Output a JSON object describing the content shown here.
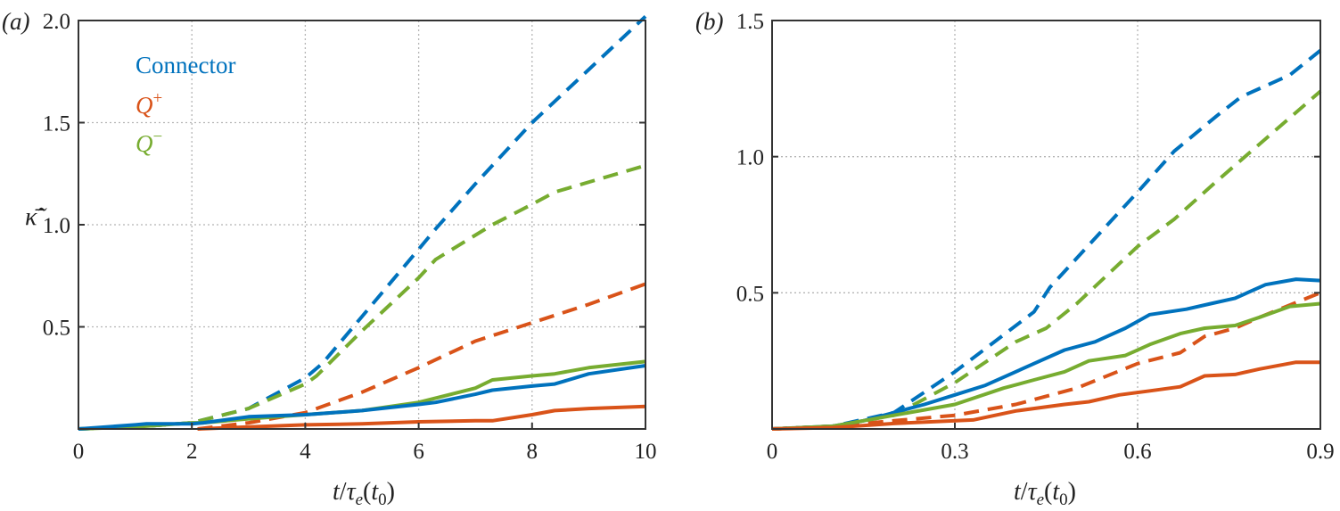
{
  "colors": {
    "connector": "#0072BD",
    "qplus": "#D95319",
    "qminus": "#77AC30",
    "axis": "#333333",
    "grid": "#b5b5b5"
  },
  "chart_data": [
    {
      "type": "line",
      "panel_label": "(a)",
      "ylabel": "κ̃̄",
      "xlabel_parts": [
        "t",
        "/",
        "τ",
        "e",
        "(",
        "t",
        "0",
        ")"
      ],
      "xlim": [
        0,
        10
      ],
      "ylim": [
        0,
        2.0
      ],
      "xticks": [
        0,
        2,
        4,
        6,
        8,
        10
      ],
      "xtick_labels": [
        "0",
        "2",
        "4",
        "6",
        "8",
        "10"
      ],
      "yticks": [
        0.5,
        1.0,
        1.5,
        2.0
      ],
      "ytick_labels": [
        "0.5",
        "1.0",
        "1.5",
        "2.0"
      ],
      "grid": true,
      "legend": [
        {
          "label": "Connector",
          "sup": "",
          "key": "connector"
        },
        {
          "label": "Q",
          "sup": "+",
          "key": "qplus"
        },
        {
          "label": "Q",
          "sup": "−",
          "key": "qminus"
        }
      ],
      "legend_position": "top-left",
      "series": [
        {
          "name": "Connector dashed",
          "key": "connector",
          "style": "dashed",
          "x": [
            0,
            1,
            2,
            3,
            4,
            4.3,
            5,
            6,
            6.3,
            7,
            8,
            9,
            10
          ],
          "y": [
            0,
            0.01,
            0.03,
            0.1,
            0.25,
            0.32,
            0.55,
            0.88,
            0.98,
            1.2,
            1.5,
            1.76,
            2.02
          ]
        },
        {
          "name": "Q- dashed",
          "key": "qminus",
          "style": "dashed",
          "x": [
            0,
            1,
            2,
            3,
            4,
            4.2,
            5,
            6,
            6.3,
            7.3,
            8,
            8.4,
            10
          ],
          "y": [
            0,
            0.01,
            0.03,
            0.1,
            0.22,
            0.26,
            0.48,
            0.74,
            0.83,
            1.0,
            1.1,
            1.16,
            1.29
          ]
        },
        {
          "name": "Q+ dashed",
          "key": "qplus",
          "style": "dashed",
          "x": [
            2.1,
            3,
            4,
            5,
            6,
            7,
            8,
            9,
            10
          ],
          "y": [
            0,
            0.03,
            0.08,
            0.18,
            0.3,
            0.43,
            0.52,
            0.61,
            0.71
          ]
        },
        {
          "name": "Q- solid",
          "key": "qminus",
          "style": "solid",
          "x": [
            0,
            1,
            2,
            2.2,
            3,
            4,
            5,
            6,
            7,
            7.3,
            8,
            8.4,
            9,
            10
          ],
          "y": [
            0,
            0.01,
            0.03,
            0.03,
            0.05,
            0.07,
            0.09,
            0.13,
            0.2,
            0.24,
            0.26,
            0.27,
            0.3,
            0.33
          ]
        },
        {
          "name": "Connector solid",
          "key": "connector",
          "style": "solid",
          "x": [
            0,
            1,
            1.2,
            2,
            2.2,
            3,
            4,
            5,
            6,
            6.3,
            7,
            7.3,
            8,
            8.4,
            9,
            10
          ],
          "y": [
            0,
            0.02,
            0.025,
            0.025,
            0.03,
            0.06,
            0.07,
            0.09,
            0.12,
            0.13,
            0.17,
            0.19,
            0.21,
            0.22,
            0.27,
            0.31
          ]
        },
        {
          "name": "Q+ solid",
          "key": "qplus",
          "style": "solid",
          "x": [
            2.1,
            3,
            4,
            5,
            6,
            7,
            7.3,
            8,
            8.4,
            9,
            10
          ],
          "y": [
            0,
            0.01,
            0.02,
            0.025,
            0.035,
            0.04,
            0.04,
            0.07,
            0.09,
            0.1,
            0.11
          ]
        }
      ]
    },
    {
      "type": "line",
      "panel_label": "(b)",
      "xlabel_parts": [
        "t",
        "/",
        "τ",
        "e",
        "(",
        "t",
        "0",
        ")"
      ],
      "xlim": [
        0,
        0.9
      ],
      "ylim": [
        0,
        1.5
      ],
      "xticks": [
        0,
        0.3,
        0.6,
        0.9
      ],
      "xtick_labels": [
        "0",
        "0.3",
        "0.6",
        "0.9"
      ],
      "yticks": [
        0.5,
        1.0,
        1.5
      ],
      "ytick_labels": [
        "0.5",
        "1.0",
        "1.5"
      ],
      "grid": true,
      "series": [
        {
          "name": "Connector dashed",
          "key": "connector",
          "style": "dashed",
          "x": [
            0,
            0.1,
            0.2,
            0.3,
            0.43,
            0.456,
            0.6,
            0.66,
            0.73,
            0.77,
            0.85,
            0.9
          ],
          "y": [
            0,
            0.01,
            0.06,
            0.21,
            0.43,
            0.52,
            0.87,
            1.02,
            1.15,
            1.22,
            1.3,
            1.39
          ]
        },
        {
          "name": "Q- dashed",
          "key": "qminus",
          "style": "dashed",
          "x": [
            0,
            0.1,
            0.2,
            0.3,
            0.4,
            0.45,
            0.5,
            0.6,
            0.66,
            0.73,
            0.9
          ],
          "y": [
            0,
            0.01,
            0.05,
            0.17,
            0.32,
            0.37,
            0.46,
            0.67,
            0.77,
            0.91,
            1.24
          ]
        },
        {
          "name": "Q+ dashed",
          "key": "qplus",
          "style": "dashed",
          "x": [
            0,
            0.1,
            0.2,
            0.3,
            0.4,
            0.5,
            0.6,
            0.67,
            0.71,
            0.76,
            0.8,
            0.9
          ],
          "y": [
            0,
            0.01,
            0.03,
            0.05,
            0.09,
            0.15,
            0.24,
            0.28,
            0.34,
            0.37,
            0.41,
            0.5
          ]
        },
        {
          "name": "Connector solid",
          "key": "connector",
          "style": "solid",
          "x": [
            0,
            0.1,
            0.15,
            0.2,
            0.25,
            0.3,
            0.35,
            0.43,
            0.48,
            0.53,
            0.58,
            0.62,
            0.68,
            0.72,
            0.76,
            0.81,
            0.86,
            0.9
          ],
          "y": [
            0,
            0.01,
            0.03,
            0.06,
            0.09,
            0.125,
            0.16,
            0.24,
            0.29,
            0.32,
            0.37,
            0.42,
            0.44,
            0.46,
            0.48,
            0.53,
            0.55,
            0.545
          ]
        },
        {
          "name": "Q- solid",
          "key": "qminus",
          "style": "solid",
          "x": [
            0,
            0.1,
            0.15,
            0.2,
            0.25,
            0.3,
            0.38,
            0.43,
            0.48,
            0.52,
            0.58,
            0.62,
            0.67,
            0.71,
            0.76,
            0.8,
            0.85,
            0.9
          ],
          "y": [
            0,
            0.01,
            0.03,
            0.05,
            0.07,
            0.09,
            0.15,
            0.18,
            0.21,
            0.25,
            0.27,
            0.31,
            0.35,
            0.37,
            0.38,
            0.41,
            0.45,
            0.46
          ]
        },
        {
          "name": "Q+ solid",
          "key": "qplus",
          "style": "solid",
          "x": [
            0,
            0.1,
            0.2,
            0.33,
            0.4,
            0.48,
            0.52,
            0.57,
            0.62,
            0.67,
            0.71,
            0.76,
            0.8,
            0.86,
            0.9
          ],
          "y": [
            0,
            0.005,
            0.02,
            0.033,
            0.066,
            0.09,
            0.1,
            0.125,
            0.14,
            0.155,
            0.195,
            0.2,
            0.22,
            0.245,
            0.245
          ]
        }
      ]
    }
  ]
}
